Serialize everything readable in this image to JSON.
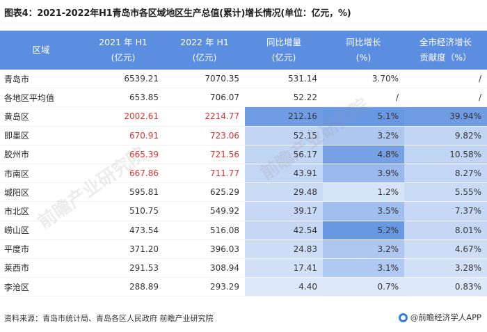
{
  "title": "图表4：2021-2022年H1青岛市各区域地区生产总值(累计)增长情况(单位：亿元，%)",
  "columns": [
    {
      "line1": "区域",
      "line2": ""
    },
    {
      "line1": "2021 年 H1",
      "line2": "(亿元)"
    },
    {
      "line1": "2022 年 H1",
      "line2": "(亿元)"
    },
    {
      "line1": "同比增量",
      "line2": "(亿元)"
    },
    {
      "line1": "同比增长",
      "line2": "(%)"
    },
    {
      "line1": "全市经济增长",
      "line2": "贡献度（%）"
    }
  ],
  "rows": [
    {
      "region": "青岛市",
      "h1_2021": "6539.21",
      "h1_2022": "7070.35",
      "increase": "531.14",
      "growth": "3.70%",
      "contribution": "/",
      "red": false,
      "inc_level": 0,
      "growth_level": 0,
      "contrib_level": 0
    },
    {
      "region": "各地区平均值",
      "h1_2021": "653.85",
      "h1_2022": "706.07",
      "increase": "52.22",
      "growth": "/",
      "contribution": "/",
      "red": false,
      "inc_level": 0,
      "growth_level": 0,
      "contrib_level": 0
    },
    {
      "region": "黄岛区",
      "h1_2021": "2002.61",
      "h1_2022": "2214.77",
      "increase": "212.16",
      "growth": "5.1%",
      "contribution": "39.94%",
      "red": true,
      "inc_level": 1.0,
      "growth_level": 0.9,
      "contrib_level": 1.0
    },
    {
      "region": "即墨区",
      "h1_2021": "670.91",
      "h1_2022": "723.06",
      "increase": "52.15",
      "growth": "3.2%",
      "contribution": "9.82%",
      "red": true,
      "inc_level": 0.3,
      "growth_level": 0.4,
      "contrib_level": 0.3
    },
    {
      "region": "胶州市",
      "h1_2021": "665.39",
      "h1_2022": "721.56",
      "increase": "56.17",
      "growth": "4.8%",
      "contribution": "10.58%",
      "red": true,
      "inc_level": 0.3,
      "growth_level": 0.8,
      "contrib_level": 0.3
    },
    {
      "region": "市南区",
      "h1_2021": "667.86",
      "h1_2022": "711.77",
      "increase": "43.91",
      "growth": "3.9%",
      "contribution": "8.27%",
      "red": true,
      "inc_level": 0.28,
      "growth_level": 0.55,
      "contrib_level": 0.28
    },
    {
      "region": "城阳区",
      "h1_2021": "595.81",
      "h1_2022": "625.29",
      "increase": "29.48",
      "growth": "1.2%",
      "contribution": "5.55%",
      "red": false,
      "inc_level": 0.22,
      "growth_level": 0.1,
      "contrib_level": 0.22
    },
    {
      "region": "市北区",
      "h1_2021": "510.75",
      "h1_2022": "549.92",
      "increase": "39.17",
      "growth": "3.5%",
      "contribution": "7.37%",
      "red": false,
      "inc_level": 0.26,
      "growth_level": 0.5,
      "contrib_level": 0.26
    },
    {
      "region": "崂山区",
      "h1_2021": "473.54",
      "h1_2022": "516.08",
      "increase": "42.54",
      "growth": "5.2%",
      "contribution": "8.01%",
      "red": false,
      "inc_level": 0.27,
      "growth_level": 0.9,
      "contrib_level": 0.27
    },
    {
      "region": "平度市",
      "h1_2021": "371.20",
      "h1_2022": "396.03",
      "increase": "24.83",
      "growth": "3.2%",
      "contribution": "4.67%",
      "red": false,
      "inc_level": 0.2,
      "growth_level": 0.4,
      "contrib_level": 0.2
    },
    {
      "region": "莱西市",
      "h1_2021": "291.53",
      "h1_2022": "308.94",
      "increase": "17.41",
      "growth": "3.1%",
      "contribution": "3.28%",
      "red": false,
      "inc_level": 0.15,
      "growth_level": 0.38,
      "contrib_level": 0.15
    },
    {
      "region": "李沧区",
      "h1_2021": "288.89",
      "h1_2022": "293.29",
      "increase": "4.40",
      "growth": "0.7%",
      "contribution": "0.83%",
      "red": false,
      "inc_level": 0.06,
      "growth_level": 0.06,
      "contrib_level": 0.06
    }
  ],
  "footer": {
    "source": "资料来源：青岛市统计局、青岛各区人民政府 前瞻产业研究院",
    "brand": "@前瞻经济学人APP"
  },
  "colors": {
    "header_bg": "#5b8ee0",
    "highlight_strong": "#5b8ee0",
    "highlight_light": "#e4edfb",
    "red_text": "#e0312d"
  }
}
